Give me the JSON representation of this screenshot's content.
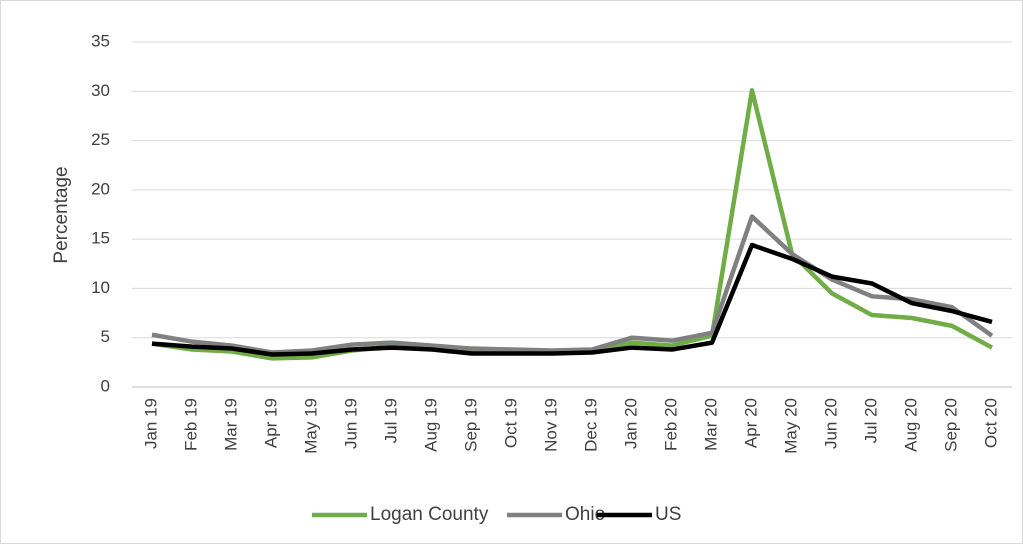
{
  "chart_data": {
    "type": "line",
    "y_label": "Percentage",
    "categories": [
      "Jan 19",
      "Feb 19",
      "Mar 19",
      "Apr 19",
      "May 19",
      "Jun 19",
      "Jul 19",
      "Aug 19",
      "Sep 19",
      "Oct 19",
      "Nov 19",
      "Dec 19",
      "Jan 20",
      "Feb 20",
      "Mar 20",
      "Apr 20",
      "May 20",
      "Jun 20",
      "Jul 20",
      "Aug 20",
      "Sep 20",
      "Oct 20"
    ],
    "series": [
      {
        "name": "Logan County",
        "color": "#70ad47",
        "values": [
          4.4,
          3.8,
          3.6,
          2.9,
          3.0,
          3.7,
          4.1,
          3.9,
          3.5,
          3.5,
          3.5,
          3.6,
          4.5,
          4.2,
          5.2,
          30.1,
          13.5,
          9.5,
          7.3,
          7.0,
          6.2,
          4.0
        ]
      },
      {
        "name": "Ohio",
        "color": "#808080",
        "values": [
          5.3,
          4.6,
          4.2,
          3.5,
          3.7,
          4.3,
          4.5,
          4.2,
          3.9,
          3.8,
          3.7,
          3.8,
          5.0,
          4.7,
          5.5,
          17.3,
          13.5,
          10.9,
          9.2,
          8.9,
          8.1,
          5.2
        ]
      },
      {
        "name": "US",
        "color": "#000000",
        "values": [
          4.4,
          4.1,
          3.9,
          3.3,
          3.4,
          3.8,
          4.0,
          3.8,
          3.4,
          3.4,
          3.4,
          3.5,
          4.0,
          3.8,
          4.5,
          14.4,
          13.0,
          11.2,
          10.5,
          8.5,
          7.7,
          6.6
        ]
      }
    ],
    "ylim": [
      0,
      35
    ],
    "yticks": [
      0,
      5,
      10,
      15,
      20,
      25,
      30,
      35
    ],
    "grid": true,
    "legend": "bottom"
  }
}
